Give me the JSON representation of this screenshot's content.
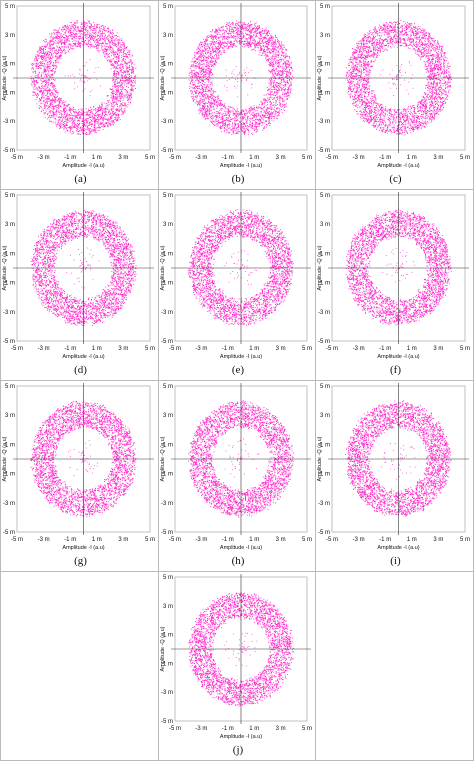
{
  "ring_color": "#ff22c8",
  "chart_data": [
    {
      "type": "scatter",
      "caption": "(a)",
      "xlabel": "Amplitude -I (a.u)",
      "ylabel": "Amplitude -Q (a.u)",
      "xlim": [
        -5,
        5
      ],
      "ylim": [
        -5,
        5
      ],
      "x_ticks": [
        "-5 m",
        "-3 m",
        "-1 m",
        "1 m",
        "3 m",
        "5 m"
      ],
      "y_ticks": [
        "5 m",
        "3 m",
        "1 m",
        "-1 m",
        "-3 m",
        "-5 m"
      ],
      "ring_inner_radius": 2.2,
      "ring_outer_radius": 3.9,
      "units": "m"
    },
    {
      "type": "scatter",
      "caption": "(b)",
      "xlabel": "Amplitude -I (a.u)",
      "ylabel": "Amplitude -Q (a.u)",
      "xlim": [
        -5,
        5
      ],
      "ylim": [
        -5,
        5
      ],
      "x_ticks": [
        "-5 m",
        "-3 m",
        "-1 m",
        "1 m",
        "3 m",
        "5 m"
      ],
      "y_ticks": [
        "5 m",
        "3 m",
        "1 m",
        "-1 m",
        "-3 m",
        "-5 m"
      ],
      "ring_inner_radius": 2.2,
      "ring_outer_radius": 3.9,
      "units": "m"
    },
    {
      "type": "scatter",
      "caption": "(c)",
      "xlabel": "Amplitude -I (a.u)",
      "ylabel": "Amplitude -Q (a.u)",
      "xlim": [
        -5,
        5
      ],
      "ylim": [
        -5,
        5
      ],
      "x_ticks": [
        "-5 m",
        "-3 m",
        "-1 m",
        "1 m",
        "3 m",
        "5 m"
      ],
      "y_ticks": [
        "5 m",
        "3 m",
        "1 m",
        "-1 m",
        "-3 m",
        "-5 m"
      ],
      "ring_inner_radius": 2.2,
      "ring_outer_radius": 3.9,
      "units": "m"
    },
    {
      "type": "scatter",
      "caption": "(d)",
      "xlabel": "Amplitude -I (a.u)",
      "ylabel": "Amplitude -Q (a.u)",
      "xlim": [
        -5,
        5
      ],
      "ylim": [
        -5,
        5
      ],
      "x_ticks": [
        "-5 m",
        "-3 m",
        "-1 m",
        "1 m",
        "3 m",
        "5 m"
      ],
      "y_ticks": [
        "5 m",
        "3 m",
        "1 m",
        "-1 m",
        "-3 m",
        "-5 m"
      ],
      "ring_inner_radius": 2.2,
      "ring_outer_radius": 3.9,
      "units": "m"
    },
    {
      "type": "scatter",
      "caption": "(e)",
      "xlabel": "Amplitude -I (a.u)",
      "ylabel": "Amplitude -Q (a.u)",
      "xlim": [
        -5,
        5
      ],
      "ylim": [
        -5,
        5
      ],
      "x_ticks": [
        "-5 m",
        "-3 m",
        "-1 m",
        "1 m",
        "3 m",
        "5 m"
      ],
      "y_ticks": [
        "5 m",
        "3 m",
        "1 m",
        "-1 m",
        "-3 m",
        "-5 m"
      ],
      "ring_inner_radius": 2.2,
      "ring_outer_radius": 3.9,
      "units": "m"
    },
    {
      "type": "scatter",
      "caption": "(f)",
      "xlabel": "Amplitude -I (a.u)",
      "ylabel": "Amplitude -Q (a.u)",
      "xlim": [
        -5,
        5
      ],
      "ylim": [
        -5,
        5
      ],
      "x_ticks": [
        "-5 m",
        "-3 m",
        "-1 m",
        "1 m",
        "3 m",
        "5 m"
      ],
      "y_ticks": [
        "5 m",
        "3 m",
        "1 m",
        "-1 m",
        "-3 m",
        "-5 m"
      ],
      "ring_inner_radius": 2.2,
      "ring_outer_radius": 3.9,
      "units": "m"
    },
    {
      "type": "scatter",
      "caption": "(g)",
      "xlabel": "Amplitude -I (a.u)",
      "ylabel": "Amplitude -Q (a.u)",
      "xlim": [
        -5,
        5
      ],
      "ylim": [
        -5,
        5
      ],
      "x_ticks": [
        "-5 m",
        "-3 m",
        "-1 m",
        "1 m",
        "3 m",
        "5 m"
      ],
      "y_ticks": [
        "5 m",
        "3 m",
        "1 m",
        "-1 m",
        "-3 m",
        "-5 m"
      ],
      "ring_inner_radius": 2.2,
      "ring_outer_radius": 3.9,
      "units": "m"
    },
    {
      "type": "scatter",
      "caption": "(h)",
      "xlabel": "Amplitude -I (a.u)",
      "ylabel": "Amplitude -Q (a.u)",
      "xlim": [
        -5,
        5
      ],
      "ylim": [
        -5,
        5
      ],
      "x_ticks": [
        "-5 m",
        "-3 m",
        "-1 m",
        "1 m",
        "3 m",
        "5 m"
      ],
      "y_ticks": [
        "5 m",
        "3 m",
        "1 m",
        "-1 m",
        "-3 m",
        "-5 m"
      ],
      "ring_inner_radius": 2.2,
      "ring_outer_radius": 3.9,
      "units": "m"
    },
    {
      "type": "scatter",
      "caption": "(i)",
      "xlabel": "Amplitude -I (a.u)",
      "ylabel": "Amplitude -Q (a.u)",
      "xlim": [
        -5,
        5
      ],
      "ylim": [
        -5,
        5
      ],
      "x_ticks": [
        "-5 m",
        "-3 m",
        "-1 m",
        "1 m",
        "3 m",
        "5 m"
      ],
      "y_ticks": [
        "5 m",
        "3 m",
        "1 m",
        "-1 m",
        "-3 m",
        "-5 m"
      ],
      "ring_inner_radius": 2.2,
      "ring_outer_radius": 3.9,
      "units": "m"
    },
    {
      "type": "scatter",
      "caption": "(j)",
      "xlabel": "Amplitude -I (a.u)",
      "ylabel": "Amplitude -Q (a.u)",
      "xlim": [
        -5,
        5
      ],
      "ylim": [
        -5,
        5
      ],
      "x_ticks": [
        "-5 m",
        "-3 m",
        "-1 m",
        "1 m",
        "3 m",
        "5 m"
      ],
      "y_ticks": [
        "5 m",
        "3 m",
        "1 m",
        "-1 m",
        "-3 m",
        "-5 m"
      ],
      "ring_inner_radius": 2.2,
      "ring_outer_radius": 3.9,
      "units": "m"
    }
  ]
}
